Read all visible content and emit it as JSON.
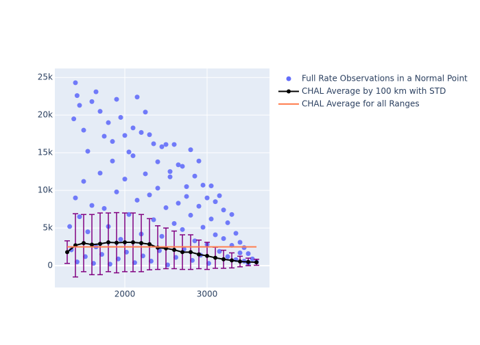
{
  "chart_data": {
    "type": "scatter",
    "xlim": [
      1150,
      3758
    ],
    "ylim": [
      -2900,
      26200
    ],
    "xticks": [
      2000,
      3000
    ],
    "yticks": [
      {
        "value": 0,
        "label": "0"
      },
      {
        "value": 5000,
        "label": "5k"
      },
      {
        "value": 10000,
        "label": "10k"
      },
      {
        "value": 15000,
        "label": "15k"
      },
      {
        "value": 20000,
        "label": "20k"
      },
      {
        "value": 25000,
        "label": "25k"
      }
    ],
    "grid": true,
    "legend": "right",
    "series": [
      {
        "name": "Full Rate Observations in a Normal Point",
        "type": "scatter",
        "color": "#636efa",
        "x": [
          1400,
          1420,
          1380,
          1450,
          1500,
          1550,
          1600,
          1650,
          1700,
          1750,
          1800,
          1850,
          1900,
          1950,
          2000,
          2050,
          2100,
          2150,
          2200,
          2250,
          2300,
          2350,
          2400,
          2450,
          2500,
          2550,
          2600,
          2650,
          2700,
          2750,
          2800,
          2850,
          2900,
          2950,
          3000,
          3050,
          3100,
          3150,
          3200,
          3250,
          3300,
          3350,
          3400,
          3450,
          3500,
          3550,
          3600,
          1400,
          1450,
          1500,
          1550,
          1600,
          1650,
          1700,
          1750,
          1800,
          1850,
          1900,
          1950,
          2000,
          2050,
          2100,
          2150,
          2200,
          2250,
          2300,
          2350,
          2400,
          2450,
          2500,
          2550,
          2600,
          2650,
          2700,
          2750,
          2800,
          2850,
          2900,
          2950,
          3000,
          3050,
          3100,
          3150,
          3200,
          3250,
          3300,
          3350,
          3400,
          3450,
          3500,
          1420,
          1520,
          1620,
          1720,
          1820,
          1920,
          2020,
          2120,
          2220,
          2320,
          2420,
          2520,
          2620,
          2720,
          2820,
          2920,
          3020,
          1330,
          1350
        ],
        "values": [
          24300,
          22600,
          19500,
          21300,
          18000,
          15200,
          21800,
          23100,
          20500,
          17200,
          19000,
          16500,
          22100,
          19700,
          17300,
          15100,
          18300,
          22400,
          17700,
          20400,
          17400,
          16200,
          13800,
          15800,
          16100,
          12500,
          16100,
          13400,
          13200,
          10500,
          15400,
          11900,
          13900,
          10700,
          9000,
          10600,
          8500,
          9300,
          7400,
          5700,
          6800,
          4300,
          3100,
          2400,
          1600,
          900,
          500,
          9000,
          6500,
          11200,
          4500,
          8000,
          2500,
          12300,
          7600,
          5200,
          13900,
          9800,
          3500,
          11500,
          6800,
          14600,
          8700,
          4200,
          12200,
          9400,
          6100,
          10300,
          3900,
          7700,
          11800,
          5600,
          8300,
          4800,
          9200,
          6700,
          3300,
          7900,
          5100,
          2800,
          6200,
          4100,
          1900,
          3600,
          1200,
          2700,
          800,
          1700,
          600,
          300,
          500,
          1200,
          300,
          1500,
          200,
          900,
          1800,
          400,
          1300,
          600,
          2000,
          100,
          1100,
          2200,
          700,
          1400,
          300,
          5200,
          2100
        ]
      },
      {
        "name": "CHAL Average by 100 km with STD",
        "type": "line",
        "color": "#000000",
        "error_color": "#800080",
        "x": [
          1300,
          1400,
          1500,
          1600,
          1700,
          1800,
          1900,
          2000,
          2100,
          2200,
          2300,
          2400,
          2500,
          2600,
          2700,
          2800,
          2900,
          3000,
          3100,
          3200,
          3300,
          3400,
          3500,
          3600
        ],
        "values": [
          1800,
          2700,
          3000,
          2800,
          2900,
          3100,
          3050,
          3100,
          3100,
          3000,
          2850,
          2400,
          2300,
          2100,
          1800,
          1800,
          1500,
          1300,
          1050,
          850,
          700,
          550,
          500,
          450
        ],
        "error": [
          1500,
          4200,
          3800,
          4000,
          4100,
          3900,
          4000,
          3900,
          3900,
          3800,
          3400,
          2900,
          2700,
          2500,
          2300,
          2300,
          1900,
          1800,
          1400,
          1200,
          1000,
          700,
          500,
          400
        ]
      },
      {
        "name": "CHAL Average for all Ranges",
        "type": "line",
        "color": "#ff7f50",
        "x": [
          1300,
          3600
        ],
        "values": [
          2500,
          2500
        ]
      }
    ]
  }
}
